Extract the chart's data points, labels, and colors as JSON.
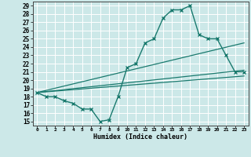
{
  "xlabel": "Humidex (Indice chaleur)",
  "bg_color": "#cce8e8",
  "grid_color": "#ffffff",
  "line_color": "#1a7a6e",
  "xlim": [
    -0.5,
    23.5
  ],
  "ylim": [
    14.5,
    29.5
  ],
  "xticks": [
    0,
    1,
    2,
    3,
    4,
    5,
    6,
    7,
    8,
    9,
    10,
    11,
    12,
    13,
    14,
    15,
    16,
    17,
    18,
    19,
    20,
    21,
    22,
    23
  ],
  "yticks": [
    15,
    16,
    17,
    18,
    19,
    20,
    21,
    22,
    23,
    24,
    25,
    26,
    27,
    28,
    29
  ],
  "line1_x": [
    0,
    1,
    2,
    3,
    4,
    5,
    6,
    7,
    8,
    9,
    10,
    11,
    12,
    13,
    14,
    15,
    16,
    17,
    18,
    19,
    20,
    21,
    22,
    23
  ],
  "line1_y": [
    18.5,
    18.0,
    18.0,
    17.5,
    17.2,
    16.5,
    16.5,
    15.0,
    15.2,
    18.0,
    21.5,
    22.0,
    24.5,
    25.0,
    27.5,
    28.5,
    28.5,
    29.0,
    25.5,
    25.0,
    25.0,
    23.0,
    21.0,
    21.0
  ],
  "line2_x": [
    0,
    23
  ],
  "line2_y": [
    18.5,
    21.2
  ],
  "line3_x": [
    0,
    23
  ],
  "line3_y": [
    18.5,
    20.5
  ],
  "line4_x": [
    0,
    23
  ],
  "line4_y": [
    18.5,
    24.5
  ]
}
